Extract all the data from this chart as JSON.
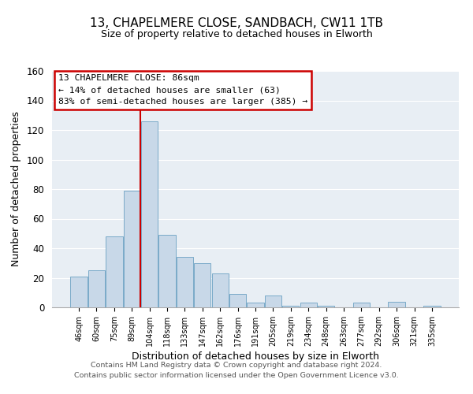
{
  "title": "13, CHAPELMERE CLOSE, SANDBACH, CW11 1TB",
  "subtitle": "Size of property relative to detached houses in Elworth",
  "xlabel": "Distribution of detached houses by size in Elworth",
  "ylabel": "Number of detached properties",
  "bar_labels": [
    "46sqm",
    "60sqm",
    "75sqm",
    "89sqm",
    "104sqm",
    "118sqm",
    "133sqm",
    "147sqm",
    "162sqm",
    "176sqm",
    "191sqm",
    "205sqm",
    "219sqm",
    "234sqm",
    "248sqm",
    "263sqm",
    "277sqm",
    "292sqm",
    "306sqm",
    "321sqm",
    "335sqm"
  ],
  "bar_heights": [
    21,
    25,
    48,
    79,
    126,
    49,
    34,
    30,
    23,
    9,
    3,
    8,
    1,
    3,
    1,
    0,
    3,
    0,
    4,
    0,
    1
  ],
  "bar_color": "#c8d8e8",
  "bar_edge_color": "#7aaac8",
  "vline_x": 3.5,
  "vline_color": "#cc0000",
  "ylim": [
    0,
    160
  ],
  "yticks": [
    0,
    20,
    40,
    60,
    80,
    100,
    120,
    140,
    160
  ],
  "annotation_title": "13 CHAPELMERE CLOSE: 86sqm",
  "annotation_line1": "← 14% of detached houses are smaller (63)",
  "annotation_line2": "83% of semi-detached houses are larger (385) →",
  "footer_line1": "Contains HM Land Registry data © Crown copyright and database right 2024.",
  "footer_line2": "Contains public sector information licensed under the Open Government Licence v3.0.",
  "axes_bg_color": "#e8eef4",
  "fig_bg_color": "#ffffff",
  "grid_color": "#ffffff"
}
